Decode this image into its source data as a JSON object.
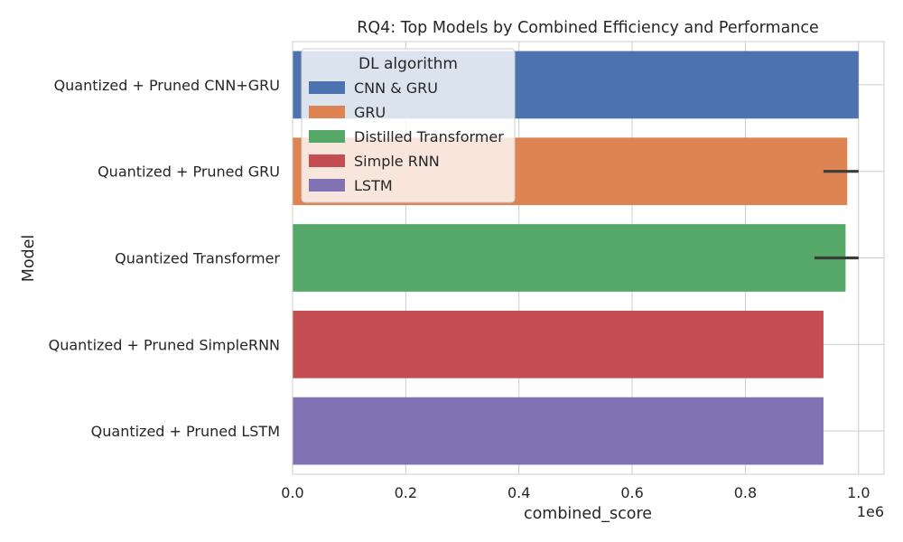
{
  "chart_data": {
    "type": "bar",
    "orientation": "horizontal",
    "title": "RQ4: Top Models by Combined Efficiency and Performance",
    "xlabel": "combined_score",
    "ylabel": "Model",
    "x_offset_label": "1e6",
    "xlim": [
      0,
      1.045
    ],
    "x_ticks": [
      "0.0",
      "0.2",
      "0.4",
      "0.6",
      "0.8",
      "1.0"
    ],
    "x_tick_values": [
      0,
      0.2,
      0.4,
      0.6,
      0.8,
      1.0
    ],
    "grid": true,
    "categories": [
      "Quantized + Pruned CNN+GRU",
      "Quantized + Pruned GRU",
      "Quantized Transformer",
      "Quantized + Pruned SimpleRNN",
      "Quantized + Pruned LSTM"
    ],
    "values": [
      1.0,
      0.98,
      0.977,
      0.938,
      0.938
    ],
    "error_bars": [
      null,
      [
        0.938,
        1.0
      ],
      [
        0.922,
        1.0
      ],
      null,
      null
    ],
    "series_colors": [
      "#4c72b0",
      "#dd8452",
      "#55a868",
      "#c44e52",
      "#8172b3"
    ],
    "legend": {
      "title": "DL algorithm",
      "placement": "top-left",
      "entries": [
        {
          "label": "CNN & GRU",
          "color": "#4c72b0"
        },
        {
          "label": "GRU",
          "color": "#dd8452"
        },
        {
          "label": "Distilled Transformer",
          "color": "#55a868"
        },
        {
          "label": "Simple RNN",
          "color": "#c44e52"
        },
        {
          "label": "LSTM",
          "color": "#8172b3"
        }
      ]
    }
  }
}
